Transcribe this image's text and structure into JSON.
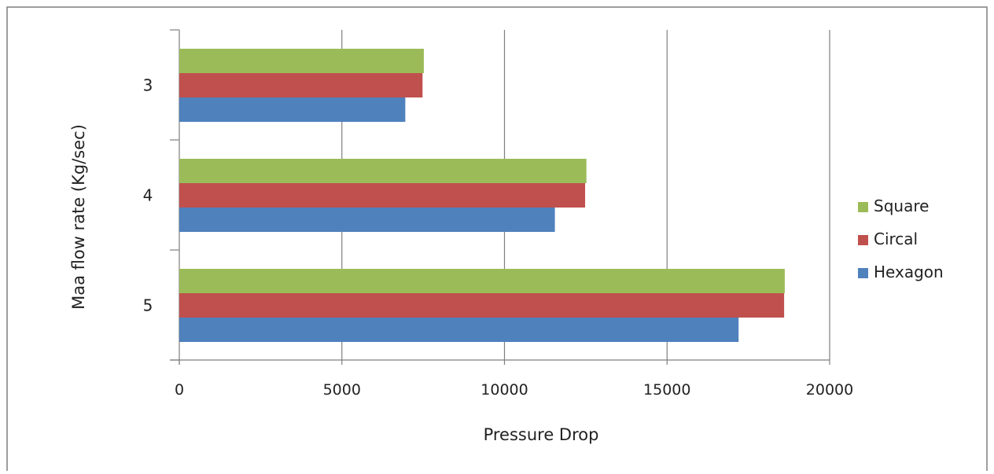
{
  "chart_data": {
    "type": "bar",
    "orientation": "horizontal",
    "title": "",
    "xlabel": "Pressure Drop",
    "ylabel": "Maa flow rate (Kg/sec)",
    "categories": [
      "3",
      "4",
      "5"
    ],
    "xlim": [
      0,
      20000
    ],
    "xticks": [
      "0",
      "5000",
      "10000",
      "15000",
      "20000"
    ],
    "grid": "vertical",
    "legend_position": "right",
    "series": [
      {
        "name": "Hexagon",
        "color": "#4f81bd",
        "values": [
          6950,
          11550,
          17200
        ]
      },
      {
        "name": "Circal",
        "color": "#c0504d",
        "values": [
          7480,
          12480,
          18600
        ]
      },
      {
        "name": "Square",
        "color": "#9bbb59",
        "values": [
          7520,
          12520,
          18620
        ]
      }
    ]
  }
}
